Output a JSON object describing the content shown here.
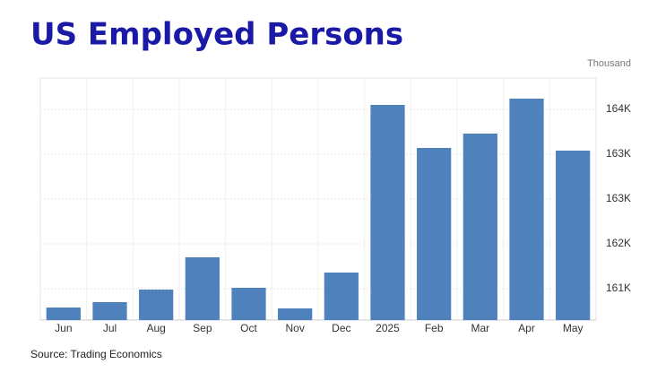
{
  "chart_data": {
    "type": "bar",
    "title": "US Employed Persons",
    "unit": "Thousand",
    "source": "Source: Trading Economics",
    "categories": [
      "Jun",
      "Jul",
      "Aug",
      "Sep",
      "Oct",
      "Nov",
      "Dec",
      "2025",
      "Feb",
      "Mar",
      "Apr",
      "May"
    ],
    "values": [
      161148,
      161220,
      161388,
      161820,
      161412,
      161136,
      161616,
      163860,
      163284,
      163476,
      163944,
      163248
    ],
    "color": "#4f81bd",
    "ylim": [
      160980,
      164220
    ],
    "yticks": [
      {
        "value": 161400,
        "label": "161K"
      },
      {
        "value": 162000,
        "label": "162K"
      },
      {
        "value": 162600,
        "label": "163K"
      },
      {
        "value": 163200,
        "label": "163K"
      },
      {
        "value": 163800,
        "label": "164K"
      }
    ],
    "grid": true
  }
}
